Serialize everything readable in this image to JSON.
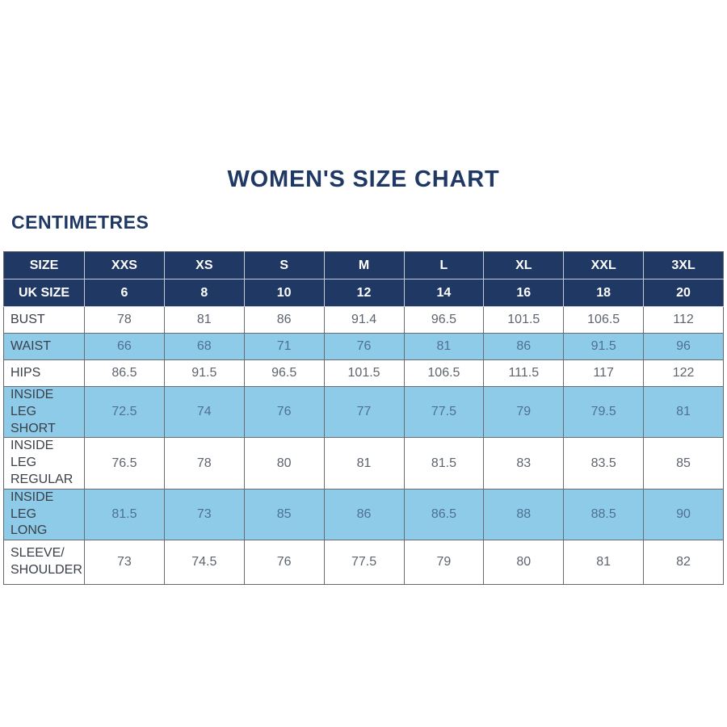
{
  "page": {
    "title": "WOMEN'S SIZE CHART",
    "units_heading": "CENTIMETRES"
  },
  "colors": {
    "navy_header": "#1f3864",
    "shaded_row_blue": "#8ecbe9",
    "title_text": "#1f3864",
    "header_text": "#ffffff"
  },
  "table": {
    "size_row": [
      "SIZE",
      "XXS",
      "XS",
      "S",
      "M",
      "L",
      "XL",
      "XXL",
      "3XL"
    ],
    "uk_size_row": [
      "UK SIZE",
      "6",
      "8",
      "10",
      "12",
      "14",
      "16",
      "18",
      "20"
    ],
    "rows": [
      {
        "label": "BUST",
        "values": [
          "78",
          "81",
          "86",
          "91.4",
          "96.5",
          "101.5",
          "106.5",
          "112"
        ]
      },
      {
        "label": "WAIST",
        "values": [
          "66",
          "68",
          "71",
          "76",
          "81",
          "86",
          "91.5",
          "96"
        ]
      },
      {
        "label": "HIPS",
        "values": [
          "86.5",
          "91.5",
          "96.5",
          "101.5",
          "106.5",
          "111.5",
          "117",
          "122"
        ]
      },
      {
        "label": "INSIDE LEG\nSHORT",
        "values": [
          "72.5",
          "74",
          "76",
          "77",
          "77.5",
          "79",
          "79.5",
          "81"
        ]
      },
      {
        "label": "INSIDE LEG\nREGULAR",
        "values": [
          "76.5",
          "78",
          "80",
          "81",
          "81.5",
          "83",
          "83.5",
          "85"
        ]
      },
      {
        "label": "INSIDE LEG\nLONG",
        "values": [
          "81.5",
          "73",
          "85",
          "86",
          "86.5",
          "88",
          "88.5",
          "90"
        ]
      },
      {
        "label": "SLEEVE/\nSHOULDER",
        "values": [
          "73",
          "74.5",
          "76",
          "77.5",
          "79",
          "80",
          "81",
          "82"
        ]
      }
    ]
  }
}
